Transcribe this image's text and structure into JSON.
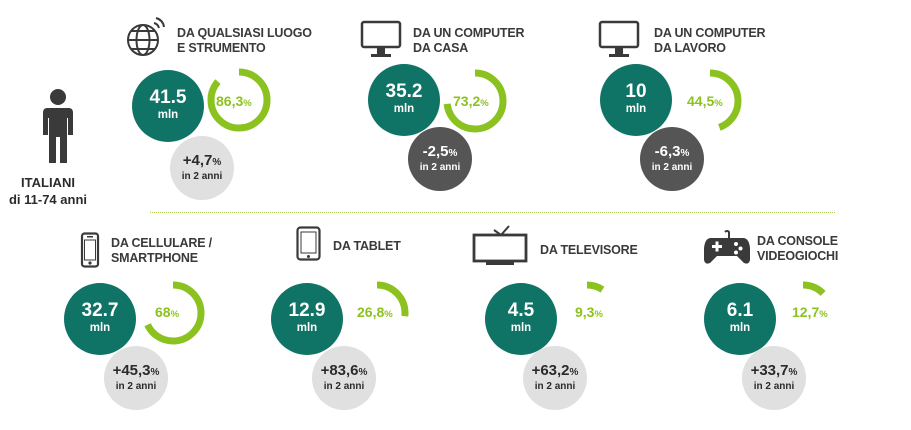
{
  "person": {
    "line1": "ITALIANI",
    "line2": "di 11-74 anni"
  },
  "unit": "mln",
  "change_sub": "in 2 anni",
  "colors": {
    "teal": "#0f7366",
    "green": "#8cc21f",
    "gray_light": "#e0e0e0",
    "gray_dark": "#555555"
  },
  "cards": [
    {
      "icon": "globe-icon",
      "title1": "DA QUALSIASI LUOGO",
      "title2": "E STRUMENTO",
      "users": "41.5",
      "pct": "86,3",
      "pct_value": 86.3,
      "change": "+4,7",
      "change_sign": "pos"
    },
    {
      "icon": "desktop-computer-icon",
      "title1": "DA UN COMPUTER",
      "title2": "DA CASA",
      "users": "35.2",
      "pct": "73,2",
      "pct_value": 73.2,
      "change": "-2,5",
      "change_sign": "neg"
    },
    {
      "icon": "desktop-computer-icon",
      "title1": "DA UN COMPUTER",
      "title2": "DA LAVORO",
      "users": "10",
      "pct": "44,5",
      "pct_value": 44.5,
      "change": "-6,3",
      "change_sign": "neg"
    },
    {
      "icon": "smartphone-icon",
      "title1": "DA CELLULARE /",
      "title2": "SMARTPHONE",
      "users": "32.7",
      "pct": "68",
      "pct_value": 68,
      "change": "+45,3",
      "change_sign": "pos"
    },
    {
      "icon": "tablet-icon",
      "title1": "DA TABLET",
      "title2": "",
      "users": "12.9",
      "pct": "26,8",
      "pct_value": 26.8,
      "change": "+83,6",
      "change_sign": "pos"
    },
    {
      "icon": "television-icon",
      "title1": "DA TELEVISORE",
      "title2": "",
      "users": "4.5",
      "pct": "9,3",
      "pct_value": 9.3,
      "change": "+63,2",
      "change_sign": "pos"
    },
    {
      "icon": "gamepad-icon",
      "title1": "DA CONSOLE",
      "title2": "VIDEOGIOCHI",
      "users": "6.1",
      "pct": "12,7",
      "pct_value": 12.7,
      "change": "+33,7",
      "change_sign": "pos"
    }
  ]
}
